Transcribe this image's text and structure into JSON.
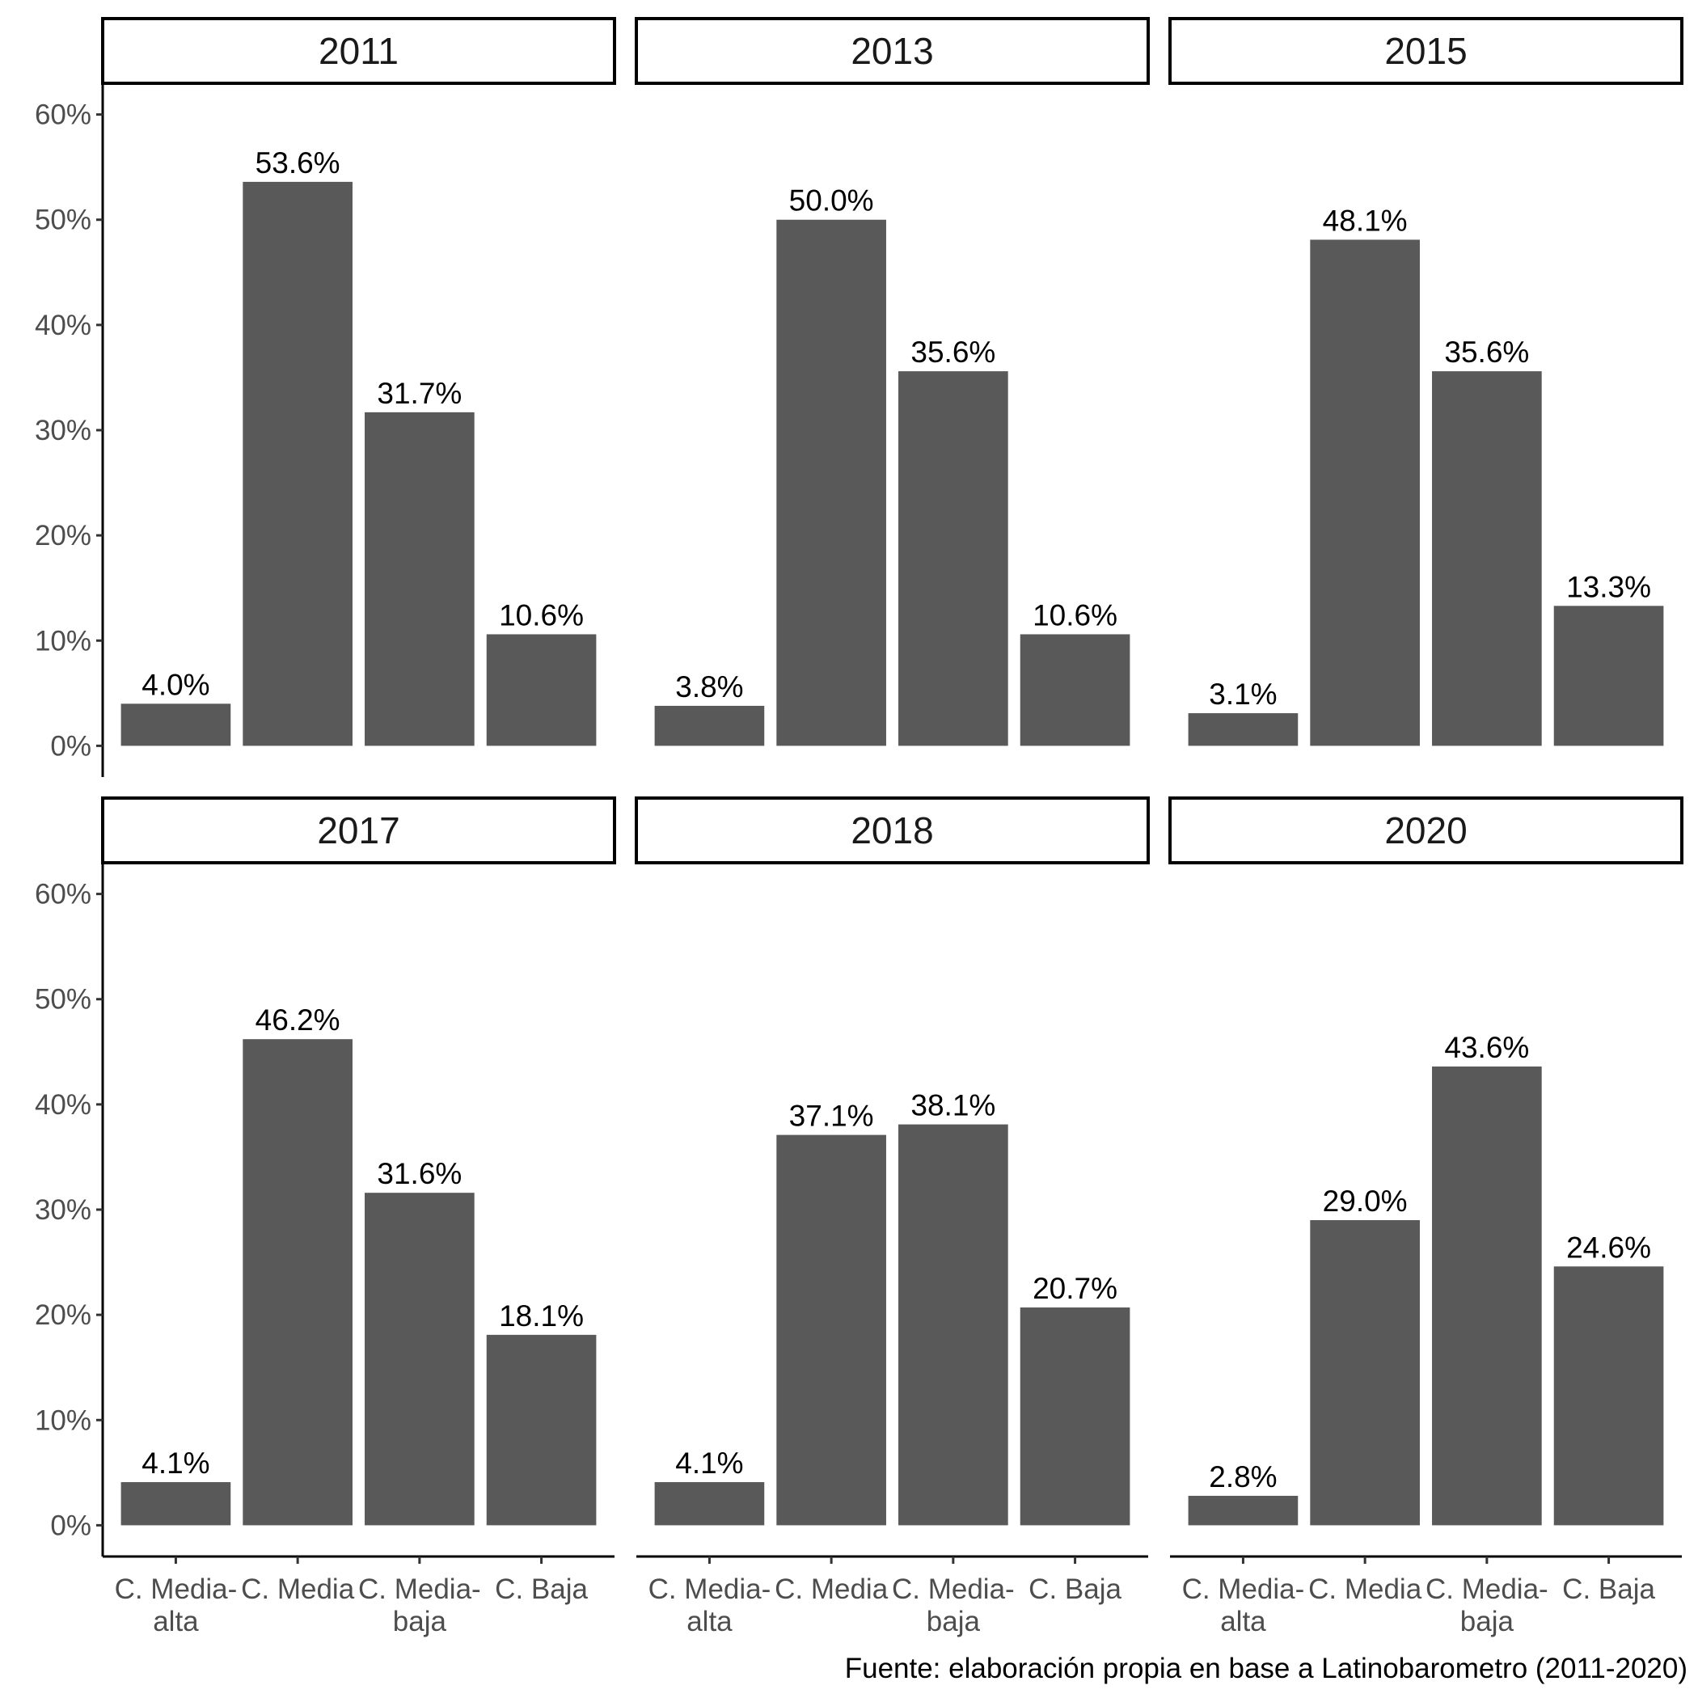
{
  "chart_data": {
    "type": "bar",
    "facet_by": "year",
    "categories": [
      [
        "C. Media-",
        "alta"
      ],
      [
        "C. Media"
      ],
      [
        "C. Media-",
        "baja"
      ],
      [
        "C. Baja"
      ]
    ],
    "ylim": [
      0,
      60
    ],
    "yticks": [
      0,
      10,
      20,
      30,
      40,
      50,
      60
    ],
    "ytick_labels": [
      "0%",
      "10%",
      "20%",
      "30%",
      "40%",
      "50%",
      "60%"
    ],
    "bar_color": "#595959",
    "grid": false,
    "panels": [
      {
        "title": "2011",
        "values": [
          4.0,
          53.6,
          31.7,
          10.6
        ],
        "labels": [
          "4.0%",
          "53.6%",
          "31.7%",
          "10.6%"
        ]
      },
      {
        "title": "2013",
        "values": [
          3.8,
          50.0,
          35.6,
          10.6
        ],
        "labels": [
          "3.8%",
          "50.0%",
          "35.6%",
          "10.6%"
        ]
      },
      {
        "title": "2015",
        "values": [
          3.1,
          48.1,
          35.6,
          13.3
        ],
        "labels": [
          "3.1%",
          "48.1%",
          "35.6%",
          "13.3%"
        ]
      },
      {
        "title": "2017",
        "values": [
          4.1,
          46.2,
          31.6,
          18.1
        ],
        "labels": [
          "4.1%",
          "46.2%",
          "31.6%",
          "18.1%"
        ]
      },
      {
        "title": "2018",
        "values": [
          4.1,
          37.1,
          38.1,
          20.7
        ],
        "labels": [
          "4.1%",
          "37.1%",
          "38.1%",
          "20.7%"
        ]
      },
      {
        "title": "2020",
        "values": [
          2.8,
          29.0,
          43.6,
          24.6
        ],
        "labels": [
          "2.8%",
          "29.0%",
          "43.6%",
          "24.6%"
        ]
      }
    ],
    "caption": "Fuente: elaboración propia en base a Latinobarometro (2011-2020)"
  }
}
